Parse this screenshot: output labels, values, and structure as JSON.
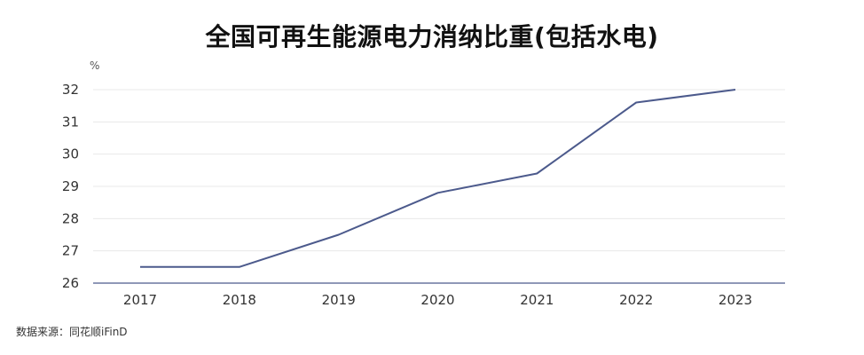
{
  "chart_data": {
    "type": "line",
    "title": "全国可再生能源电力消纳比重(包括水电)",
    "ylabel": "%",
    "xlabel": "",
    "categories": [
      "2017",
      "2018",
      "2019",
      "2020",
      "2021",
      "2022",
      "2023"
    ],
    "series": [
      {
        "values": [
          26.5,
          26.5,
          27.5,
          28.8,
          29.4,
          31.6,
          32.0
        ],
        "color": "#4c5a8c"
      }
    ],
    "ylim": [
      26,
      32
    ],
    "yticks": [
      26,
      27,
      28,
      29,
      30,
      31,
      32
    ],
    "grid": true,
    "legend": "none"
  },
  "source_note": "数据来源：同花顺iFinD"
}
